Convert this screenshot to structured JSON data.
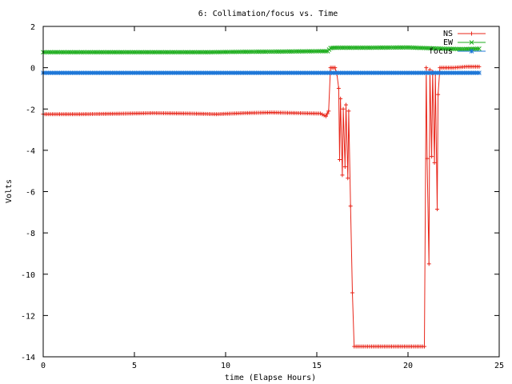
{
  "chart_data": {
    "type": "line",
    "title": "6: Collimation/focus vs. Time",
    "xlabel": "time (Elapse Hours)",
    "ylabel": "Volts",
    "xlim": [
      0,
      25
    ],
    "ylim": [
      -14,
      2
    ],
    "xticks": [
      0,
      5,
      10,
      15,
      20,
      25
    ],
    "yticks": [
      2,
      0,
      -2,
      -4,
      -6,
      -8,
      -10,
      -12,
      -14
    ],
    "grid": false,
    "legend_position": "top-right",
    "series": [
      {
        "name": "NS",
        "color": "#e8261a",
        "marker": "plus",
        "points": [
          [
            0,
            -2.25
          ],
          [
            2,
            -2.25
          ],
          [
            4,
            -2.23
          ],
          [
            6,
            -2.2
          ],
          [
            8,
            -2.22
          ],
          [
            9.5,
            -2.25
          ],
          [
            11,
            -2.2
          ],
          [
            12.5,
            -2.17
          ],
          [
            14,
            -2.2
          ],
          [
            15.2,
            -2.22
          ],
          [
            15.5,
            -2.35
          ],
          [
            15.65,
            -2.1
          ],
          [
            15.75,
            0.0
          ],
          [
            16.0,
            0.0
          ],
          [
            16.1,
            -0.3
          ],
          [
            16.2,
            -1.0
          ],
          [
            16.25,
            -4.45
          ],
          [
            16.3,
            -1.5
          ],
          [
            16.4,
            -5.2
          ],
          [
            16.45,
            -2.0
          ],
          [
            16.55,
            -4.8
          ],
          [
            16.6,
            -1.8
          ],
          [
            16.7,
            -5.35
          ],
          [
            16.75,
            -2.1
          ],
          [
            16.85,
            -6.7
          ],
          [
            16.95,
            -10.9
          ],
          [
            17.05,
            -13.5
          ],
          [
            18.0,
            -13.5
          ],
          [
            19.0,
            -13.5
          ],
          [
            20.0,
            -13.5
          ],
          [
            20.9,
            -13.5
          ],
          [
            21.0,
            0.0
          ],
          [
            21.05,
            -4.4
          ],
          [
            21.15,
            -9.5
          ],
          [
            21.2,
            -0.1
          ],
          [
            21.3,
            -4.3
          ],
          [
            21.35,
            -0.2
          ],
          [
            21.45,
            -4.6
          ],
          [
            21.5,
            -0.3
          ],
          [
            21.6,
            -6.85
          ],
          [
            21.65,
            -1.3
          ],
          [
            21.75,
            0.0
          ],
          [
            22.5,
            0.0
          ],
          [
            23.2,
            0.05
          ],
          [
            23.9,
            0.05
          ]
        ]
      },
      {
        "name": "EW",
        "color": "#1fae1f",
        "marker": "cross",
        "points": [
          [
            0,
            0.75
          ],
          [
            3,
            0.75
          ],
          [
            6,
            0.75
          ],
          [
            9,
            0.75
          ],
          [
            11,
            0.77
          ],
          [
            13,
            0.78
          ],
          [
            15.3,
            0.8
          ],
          [
            15.6,
            0.8
          ],
          [
            15.75,
            0.95
          ],
          [
            16.0,
            0.97
          ],
          [
            18,
            0.97
          ],
          [
            20,
            0.98
          ],
          [
            21,
            0.95
          ],
          [
            22,
            0.92
          ],
          [
            23,
            0.9
          ],
          [
            23.9,
            0.92
          ]
        ]
      },
      {
        "name": "focus",
        "color": "#1f78d8",
        "marker": "star",
        "points": [
          [
            0,
            -0.25
          ],
          [
            4,
            -0.25
          ],
          [
            8,
            -0.25
          ],
          [
            12,
            -0.25
          ],
          [
            16,
            -0.25
          ],
          [
            20,
            -0.25
          ],
          [
            23.9,
            -0.25
          ]
        ]
      }
    ]
  }
}
